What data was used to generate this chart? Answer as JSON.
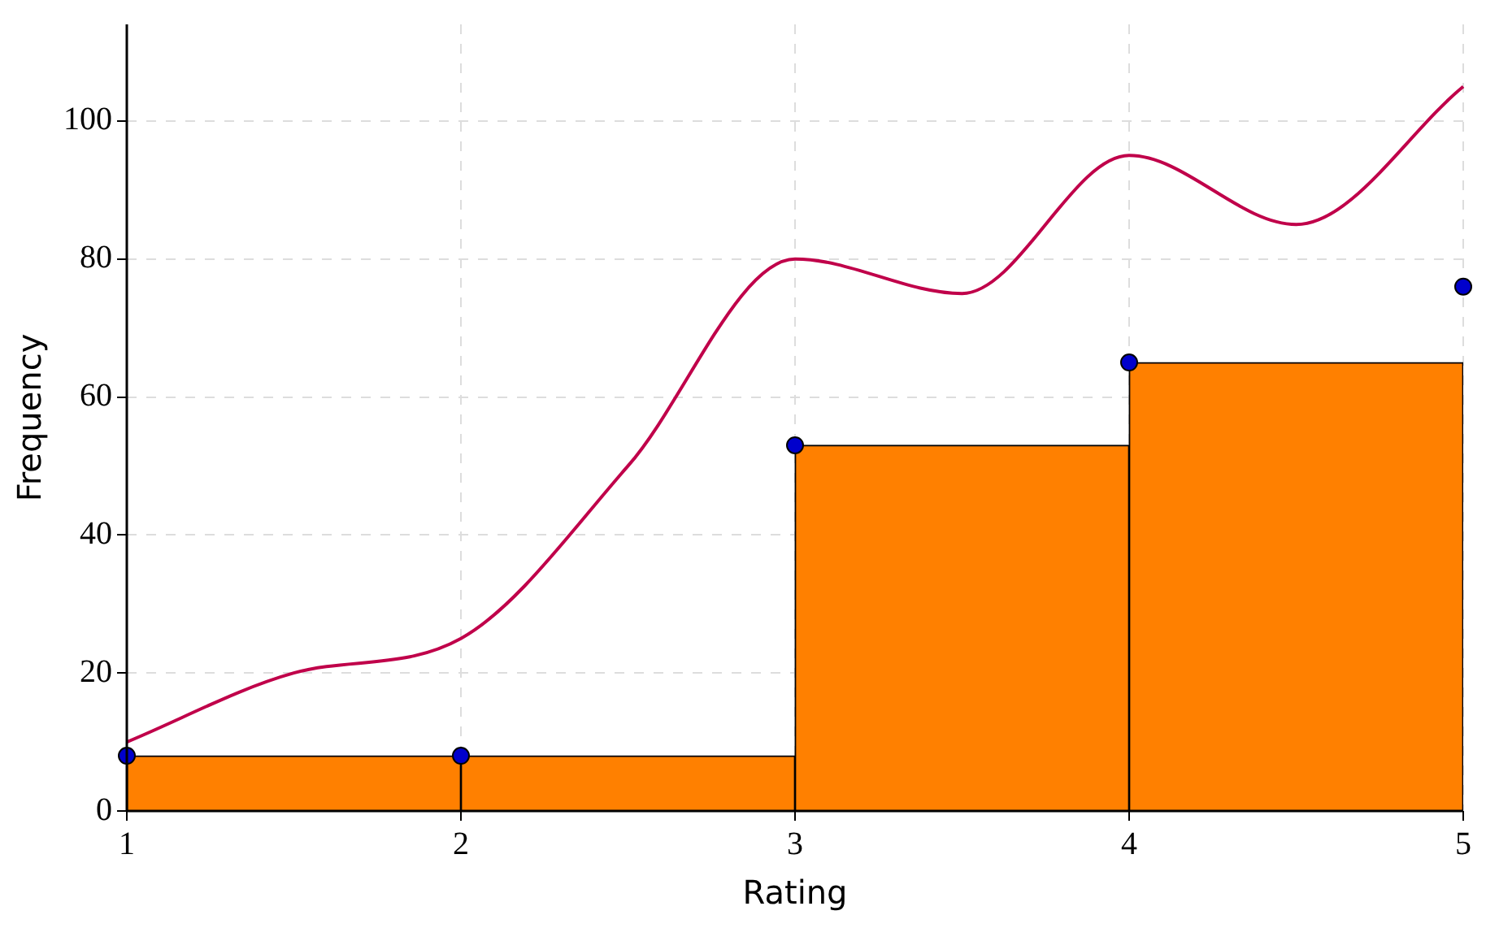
{
  "chart_data": {
    "type": "histogram",
    "xlabel": "Rating",
    "ylabel": "Frequency",
    "xlim": [
      1,
      5
    ],
    "xticks": [
      1,
      2,
      3,
      4,
      5
    ],
    "ylim": [
      0,
      114
    ],
    "yticks": [
      0,
      20,
      40,
      60,
      80,
      100
    ],
    "grid": true,
    "legend": false,
    "series": [
      {
        "bins": [
          1,
          2,
          3,
          4,
          5
        ],
        "values": [
          8,
          8,
          53,
          65
        ],
        "color": "#ff8000"
      },
      {
        "type": "scatter",
        "x": [
          1,
          2,
          3,
          4,
          5
        ],
        "values": [
          8,
          8,
          53,
          65,
          76
        ],
        "color": "#0000cc",
        "marker": "circle"
      },
      {
        "type": "line",
        "x": [
          1,
          1.5,
          2,
          2.5,
          3,
          3.5,
          4,
          4.5,
          5
        ],
        "values": [
          10,
          20,
          25,
          50,
          80,
          75,
          95,
          85,
          105
        ],
        "color": "#c0004a",
        "marker": "none"
      }
    ]
  }
}
